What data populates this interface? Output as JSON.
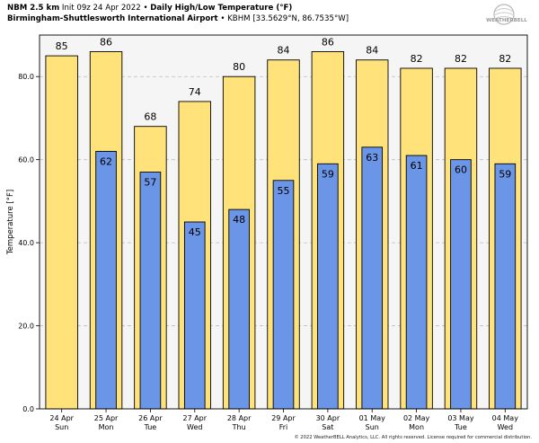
{
  "header": {
    "model": "NBM 2.5 km",
    "init": "Init 09z 24 Apr 2022",
    "bullet": "•",
    "product": "Daily High/Low Temperature (°F)",
    "station": "Birmingham-Shuttlesworth International Airport",
    "station_code": "• KBHM",
    "coords": "[33.5629°N, 86.7535°W]"
  },
  "logo": {
    "text": "WEATHERBELL"
  },
  "footer": "© 2022 WeatherBELL Analytics, LLC. All rights reserved. License required for commercial distribution.",
  "colors": {
    "high": "#ffe27a",
    "low": "#6b95e6",
    "bar_edge": "#000000",
    "grid": "#bdbdbd",
    "plot_bg": "#f5f5f5"
  },
  "chart_data": {
    "type": "bar",
    "ylabel": "Temperature [°F]",
    "ylim": [
      0,
      90
    ],
    "yticks": [
      0,
      20,
      40,
      60,
      80
    ],
    "ytick_labels": [
      "0.0",
      "20.0",
      "40.0",
      "60.0",
      "80.0"
    ],
    "grid": true,
    "categories": [
      [
        "24 Apr",
        "Sun"
      ],
      [
        "25 Apr",
        "Mon"
      ],
      [
        "26 Apr",
        "Tue"
      ],
      [
        "27 Apr",
        "Wed"
      ],
      [
        "28 Apr",
        "Thu"
      ],
      [
        "29 Apr",
        "Fri"
      ],
      [
        "30 Apr",
        "Sat"
      ],
      [
        "01 May",
        "Sun"
      ],
      [
        "02 May",
        "Mon"
      ],
      [
        "03 May",
        "Tue"
      ],
      [
        "04 May",
        "Wed"
      ]
    ],
    "series": [
      {
        "values": [
          85,
          86,
          68,
          74,
          80,
          84,
          86,
          84,
          82,
          82,
          82
        ]
      },
      {
        "values": [
          null,
          62,
          57,
          45,
          48,
          55,
          59,
          63,
          61,
          60,
          59
        ]
      }
    ]
  }
}
